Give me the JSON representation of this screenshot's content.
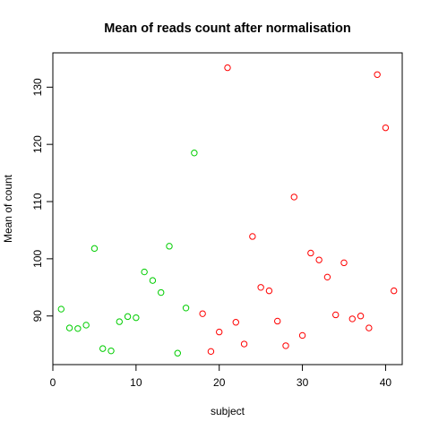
{
  "chart_data": {
    "type": "scatter",
    "title": "Mean of reads count after normalisation",
    "xlabel": "subject",
    "ylabel": "Mean of count",
    "xlim": [
      0,
      42
    ],
    "ylim": [
      81.5,
      136
    ],
    "xticks": [
      0,
      10,
      20,
      30,
      40
    ],
    "yticks": [
      90,
      100,
      110,
      120,
      130
    ],
    "grid": false,
    "legend": "none",
    "series": [
      {
        "color": "#00cd00",
        "x": [
          1,
          2,
          3,
          4,
          5,
          6,
          7,
          8,
          9,
          10,
          11,
          12,
          13,
          14,
          15,
          16,
          17
        ],
        "y": [
          91.2,
          87.9,
          87.8,
          88.4,
          101.8,
          84.3,
          83.9,
          89.0,
          89.9,
          89.7,
          97.7,
          96.2,
          94.1,
          102.2,
          83.5,
          91.4,
          118.5
        ]
      },
      {
        "color": "#ff0000",
        "x": [
          18,
          19,
          20,
          21,
          22,
          23,
          24,
          25,
          26,
          27,
          28,
          29,
          30,
          31,
          32,
          33,
          34,
          35,
          36,
          37,
          38,
          39,
          40,
          41
        ],
        "y": [
          90.4,
          83.8,
          87.2,
          133.4,
          88.9,
          85.1,
          103.9,
          95.0,
          94.4,
          89.1,
          84.8,
          110.8,
          86.6,
          101.0,
          99.8,
          96.8,
          90.2,
          99.3,
          89.5,
          90.0,
          87.9,
          132.2,
          122.9,
          94.4
        ]
      }
    ]
  }
}
